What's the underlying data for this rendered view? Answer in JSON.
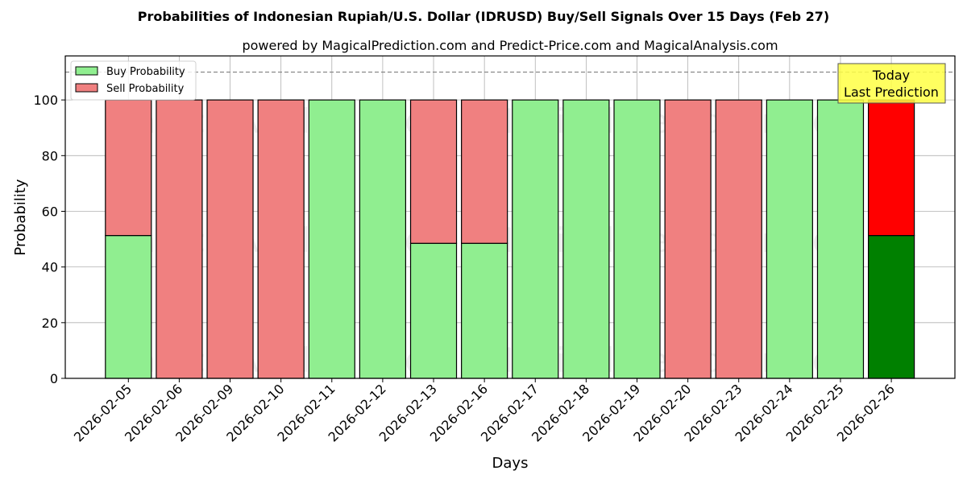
{
  "chart_data": {
    "type": "bar",
    "stacked": true,
    "title": "Probabilities of Indonesian Rupiah/U.S. Dollar (IDRUSD) Buy/Sell Signals Over 15 Days (Feb 27)",
    "subtitle": "powered by MagicalPrediction.com and Predict-Price.com and MagicalAnalysis.com",
    "xlabel": "Days",
    "ylabel": "Probability",
    "ylim": [
      0,
      115.8
    ],
    "yticks": [
      0,
      20,
      40,
      60,
      80,
      100
    ],
    "grid": true,
    "legend_position": "upper left",
    "categories": [
      "2026-02-05",
      "2026-02-06",
      "2026-02-09",
      "2026-02-10",
      "2026-02-11",
      "2026-02-12",
      "2026-02-13",
      "2026-02-16",
      "2026-02-17",
      "2026-02-18",
      "2026-02-19",
      "2026-02-20",
      "2026-02-23",
      "2026-02-24",
      "2026-02-25",
      "2026-02-26"
    ],
    "series": [
      {
        "name": "Buy Probability",
        "color": "#90ee90",
        "values": [
          51.3,
          0,
          0,
          0,
          100,
          100,
          48.5,
          48.5,
          100,
          100,
          100,
          0,
          0,
          100,
          100,
          51.3
        ]
      },
      {
        "name": "Sell Probability",
        "color": "#f08080",
        "values": [
          48.7,
          100,
          100,
          100,
          0,
          0,
          51.5,
          51.5,
          0,
          0,
          0,
          100,
          100,
          0,
          0,
          48.7
        ]
      }
    ],
    "highlight": {
      "index": 15,
      "buy_color": "#008000",
      "sell_color": "#ff0000"
    },
    "reference_line": {
      "y": 110,
      "style": "dashed",
      "color": "#808080"
    },
    "annotation": {
      "text_line1": "Today",
      "text_line2": "Last Prediction",
      "background": "#ffff44"
    },
    "watermarks": [
      "MagicalAnalysis.com",
      "MagicalPrediction.com"
    ]
  }
}
